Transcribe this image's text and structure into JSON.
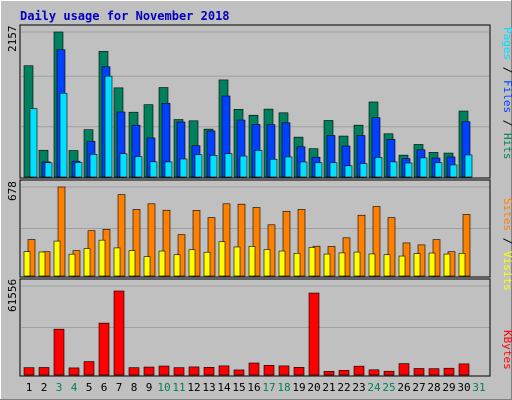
{
  "title": "Daily usage for November 2018",
  "colors": {
    "hits": "#00805c",
    "files": "#0040ff",
    "pages": "#00e0ff",
    "visits": "#ffff00",
    "sites": "#ff8000",
    "kbytes": "#ff0000",
    "weekend_day": "#00805c",
    "weekday": "#000000",
    "panel_bg": "#c0c0c0",
    "grid": "#a0a0a0"
  },
  "legend_right": {
    "top": [
      {
        "text": "Pages",
        "color": "#00e0ff"
      },
      {
        "text": " / ",
        "color": "#000000"
      },
      {
        "text": "Files",
        "color": "#0040ff"
      },
      {
        "text": " / ",
        "color": "#000000"
      },
      {
        "text": "Hits",
        "color": "#00805c"
      }
    ],
    "middle": [
      {
        "text": "Sites",
        "color": "#ff8000"
      },
      {
        "text": " / ",
        "color": "#000000"
      },
      {
        "text": "Visits",
        "color": "#ffff00"
      }
    ],
    "bottom": [
      {
        "text": "KBytes",
        "color": "#ff0000"
      }
    ]
  },
  "chart_data": [
    {
      "type": "bar",
      "panel": "top",
      "ymax_label": "2157",
      "ylim": [
        0,
        2157
      ],
      "categories": [
        "1",
        "2",
        "3",
        "4",
        "5",
        "6",
        "7",
        "8",
        "9",
        "10",
        "11",
        "12",
        "13",
        "14",
        "15",
        "16",
        "17",
        "18",
        "19",
        "20",
        "21",
        "22",
        "23",
        "24",
        "25",
        "26",
        "27",
        "28",
        "29",
        "30",
        "31"
      ],
      "series": [
        {
          "name": "Hits",
          "values": [
            1655,
            398,
            2157,
            394,
            704,
            1869,
            1326,
            964,
            1076,
            1331,
            855,
            836,
            712,
            1444,
            1007,
            919,
            1010,
            955,
            593,
            421,
            841,
            609,
            771,
            1116,
            643,
            325,
            484,
            366,
            356,
            981,
            0
          ]
        },
        {
          "name": "Files",
          "values": [
            0,
            225,
            1893,
            235,
            530,
            1640,
            967,
            771,
            581,
            1096,
            818,
            465,
            685,
            1205,
            847,
            781,
            778,
            806,
            449,
            294,
            617,
            461,
            616,
            882,
            559,
            273,
            405,
            282,
            298,
            822,
            0
          ]
        },
        {
          "name": "Pages",
          "values": [
            1016,
            212,
            1246,
            217,
            336,
            1500,
            346,
            303,
            226,
            224,
            268,
            331,
            321,
            346,
            312,
            395,
            264,
            298,
            224,
            212,
            214,
            167,
            199,
            291,
            225,
            208,
            284,
            212,
            180,
            328,
            0
          ]
        }
      ]
    },
    {
      "type": "bar",
      "panel": "middle",
      "ymax_label": "678",
      "ylim": [
        0,
        678
      ],
      "categories": [
        "1",
        "2",
        "3",
        "4",
        "5",
        "6",
        "7",
        "8",
        "9",
        "10",
        "11",
        "12",
        "13",
        "14",
        "15",
        "16",
        "17",
        "18",
        "19",
        "20",
        "21",
        "22",
        "23",
        "24",
        "25",
        "26",
        "27",
        "28",
        "29",
        "30",
        "31"
      ],
      "series": [
        {
          "name": "Visits",
          "values": [
            185,
            183,
            266,
            166,
            209,
            273,
            214,
            193,
            147,
            190,
            162,
            200,
            181,
            261,
            221,
            225,
            202,
            190,
            173,
            218,
            167,
            176,
            182,
            168,
            162,
            152,
            170,
            175,
            167,
            173,
            0
          ]
        },
        {
          "name": "Sites",
          "values": [
            278,
            185,
            678,
            193,
            345,
            355,
            620,
            507,
            550,
            501,
            315,
            500,
            445,
            550,
            547,
            522,
            390,
            493,
            507,
            227,
            225,
            291,
            463,
            530,
            445,
            252,
            237,
            277,
            185,
            469,
            0
          ]
        }
      ]
    },
    {
      "type": "bar",
      "panel": "bottom",
      "ymax_label": "61556",
      "ylim": [
        0,
        61556
      ],
      "categories": [
        "1",
        "2",
        "3",
        "4",
        "5",
        "6",
        "7",
        "8",
        "9",
        "10",
        "11",
        "12",
        "13",
        "14",
        "15",
        "16",
        "17",
        "18",
        "19",
        "20",
        "21",
        "22",
        "23",
        "24",
        "25",
        "26",
        "27",
        "28",
        "29",
        "30",
        "31"
      ],
      "series": [
        {
          "name": "KBytes",
          "values": [
            5100,
            5200,
            31700,
            4900,
            9300,
            35900,
            58100,
            5100,
            5500,
            6200,
            5100,
            5600,
            5300,
            6300,
            3500,
            8300,
            6700,
            6300,
            5300,
            56700,
            2500,
            3200,
            6100,
            3600,
            2600,
            7900,
            4500,
            4400,
            4700,
            7700,
            0
          ]
        }
      ]
    }
  ],
  "x_axis": {
    "days": [
      {
        "label": "1",
        "weekend": false
      },
      {
        "label": "2",
        "weekend": false
      },
      {
        "label": "3",
        "weekend": true
      },
      {
        "label": "4",
        "weekend": true
      },
      {
        "label": "5",
        "weekend": false
      },
      {
        "label": "6",
        "weekend": false
      },
      {
        "label": "7",
        "weekend": false
      },
      {
        "label": "8",
        "weekend": false
      },
      {
        "label": "9",
        "weekend": false
      },
      {
        "label": "10",
        "weekend": true
      },
      {
        "label": "11",
        "weekend": true
      },
      {
        "label": "12",
        "weekend": false
      },
      {
        "label": "13",
        "weekend": false
      },
      {
        "label": "14",
        "weekend": false
      },
      {
        "label": "15",
        "weekend": false
      },
      {
        "label": "16",
        "weekend": false
      },
      {
        "label": "17",
        "weekend": true
      },
      {
        "label": "18",
        "weekend": true
      },
      {
        "label": "19",
        "weekend": false
      },
      {
        "label": "20",
        "weekend": false
      },
      {
        "label": "21",
        "weekend": false
      },
      {
        "label": "22",
        "weekend": false
      },
      {
        "label": "23",
        "weekend": false
      },
      {
        "label": "24",
        "weekend": true
      },
      {
        "label": "25",
        "weekend": true
      },
      {
        "label": "26",
        "weekend": false
      },
      {
        "label": "27",
        "weekend": false
      },
      {
        "label": "28",
        "weekend": false
      },
      {
        "label": "29",
        "weekend": false
      },
      {
        "label": "30",
        "weekend": false
      },
      {
        "label": "31",
        "weekend": true
      }
    ]
  }
}
